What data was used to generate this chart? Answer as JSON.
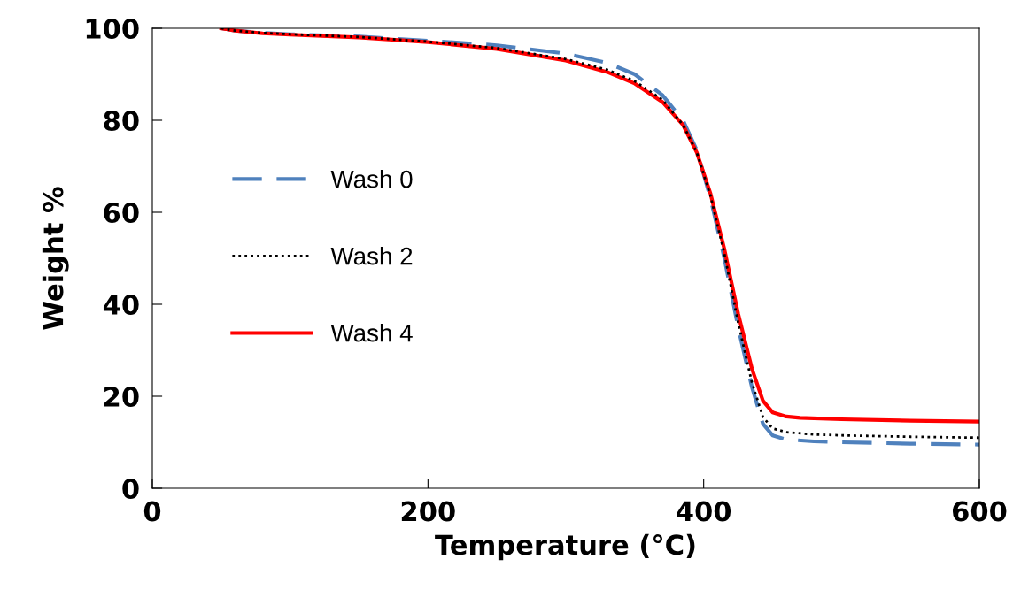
{
  "chart_data": {
    "type": "line",
    "xlabel": "Temperature (°C)",
    "ylabel": "Weight %",
    "xlim": [
      0,
      600
    ],
    "ylim": [
      0,
      100
    ],
    "xticks": [
      0,
      200,
      400,
      600
    ],
    "yticks": [
      0,
      20,
      40,
      60,
      80,
      100
    ],
    "grid": false,
    "legend": "left",
    "series": [
      {
        "name": "Wash 0",
        "color": "#4f81bd",
        "line_style": "dashed",
        "x": [
          50,
          60,
          80,
          100,
          150,
          200,
          250,
          300,
          330,
          350,
          370,
          385,
          395,
          405,
          415,
          425,
          435,
          443,
          450,
          460,
          480,
          500,
          550,
          600
        ],
        "values": [
          100,
          99.5,
          99,
          98.7,
          98.2,
          97.3,
          96.3,
          94.5,
          92.5,
          90,
          85.5,
          80,
          73.5,
          63,
          50,
          35,
          22,
          14,
          11.5,
          10.6,
          10.2,
          10,
          9.7,
          9.5
        ]
      },
      {
        "name": "Wash 2",
        "color": "#000000",
        "line_style": "dotted",
        "x": [
          50,
          60,
          80,
          100,
          150,
          200,
          250,
          300,
          330,
          350,
          370,
          385,
          395,
          405,
          415,
          425,
          435,
          443,
          450,
          460,
          480,
          500,
          550,
          600
        ],
        "values": [
          100,
          99.5,
          99,
          98.7,
          98.1,
          97.1,
          95.7,
          93.3,
          91,
          88.5,
          84.5,
          79,
          73,
          63.5,
          51,
          36,
          23,
          15.5,
          13,
          12.2,
          11.7,
          11.5,
          11.2,
          11
        ]
      },
      {
        "name": "Wash 4",
        "color": "#ff0000",
        "line_style": "solid",
        "x": [
          50,
          60,
          80,
          100,
          150,
          200,
          250,
          300,
          330,
          350,
          370,
          385,
          395,
          405,
          415,
          425,
          435,
          443,
          450,
          460,
          470,
          500,
          550,
          600
        ],
        "values": [
          100,
          99.5,
          98.9,
          98.6,
          98,
          97,
          95.5,
          93,
          90.5,
          88,
          84,
          79,
          73,
          64,
          52,
          38,
          26,
          19,
          16.5,
          15.6,
          15.3,
          15,
          14.7,
          14.5
        ]
      }
    ]
  }
}
